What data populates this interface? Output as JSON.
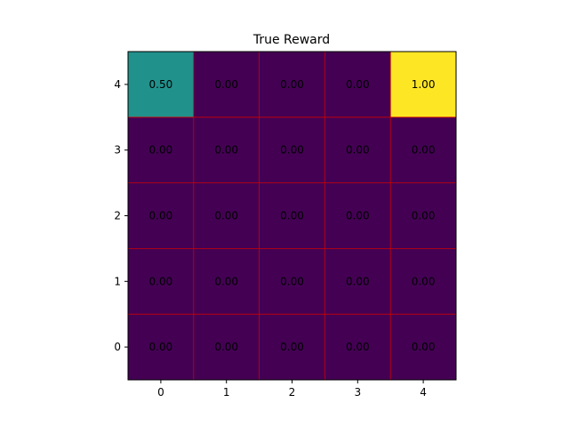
{
  "chart_data": {
    "type": "heatmap",
    "title": "True Reward",
    "x_ticks": [
      "0",
      "1",
      "2",
      "3",
      "4"
    ],
    "y_ticks": [
      "0",
      "1",
      "2",
      "3",
      "4"
    ],
    "rows": [
      {
        "y": 4,
        "values": [
          0.5,
          0.0,
          0.0,
          0.0,
          1.0
        ],
        "labels": [
          "0.50",
          "0.00",
          "0.00",
          "0.00",
          "1.00"
        ]
      },
      {
        "y": 3,
        "values": [
          0.0,
          0.0,
          0.0,
          0.0,
          0.0
        ],
        "labels": [
          "0.00",
          "0.00",
          "0.00",
          "0.00",
          "0.00"
        ]
      },
      {
        "y": 2,
        "values": [
          0.0,
          0.0,
          0.0,
          0.0,
          0.0
        ],
        "labels": [
          "0.00",
          "0.00",
          "0.00",
          "0.00",
          "0.00"
        ]
      },
      {
        "y": 1,
        "values": [
          0.0,
          0.0,
          0.0,
          0.0,
          0.0
        ],
        "labels": [
          "0.00",
          "0.00",
          "0.00",
          "0.00",
          "0.00"
        ]
      },
      {
        "y": 0,
        "values": [
          0.0,
          0.0,
          0.0,
          0.0,
          0.0
        ],
        "labels": [
          "0.00",
          "0.00",
          "0.00",
          "0.00",
          "0.00"
        ]
      }
    ],
    "colormap": "viridis",
    "color_range": [
      0,
      1
    ],
    "colors": {
      "low": "#440154",
      "mid": "#21918c",
      "high": "#fde725",
      "grid_line": "#cc0000"
    },
    "grid": true,
    "xlim": [
      -0.5,
      4.5
    ],
    "ylim": [
      -0.5,
      4.5
    ]
  }
}
